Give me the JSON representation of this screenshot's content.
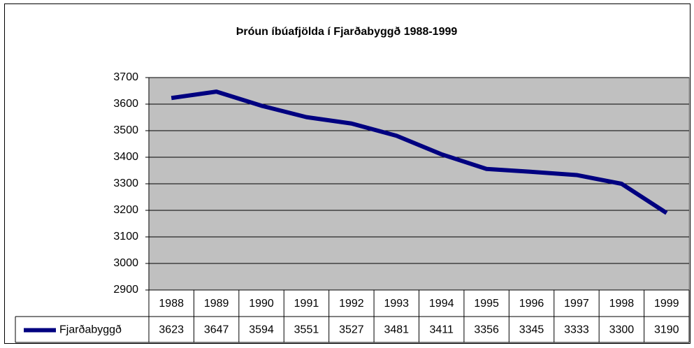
{
  "chart_data": {
    "type": "line",
    "title": "Þróun íbúafjölda í Fjarðabyggð 1988-1999",
    "categories": [
      "1988",
      "1989",
      "1990",
      "1991",
      "1992",
      "1993",
      "1994",
      "1995",
      "1996",
      "1997",
      "1998",
      "1999"
    ],
    "series": [
      {
        "name": "Fjarðabyggð",
        "color": "#000080",
        "values": [
          3623,
          3647,
          3594,
          3551,
          3527,
          3481,
          3411,
          3356,
          3345,
          3333,
          3300,
          3190
        ]
      }
    ],
    "ylim": [
      2900,
      3700
    ],
    "yticks": [
      2900,
      3000,
      3100,
      3200,
      3300,
      3400,
      3500,
      3600,
      3700
    ],
    "grid": true,
    "plot_background": "#c0c0c0",
    "data_table": true
  }
}
